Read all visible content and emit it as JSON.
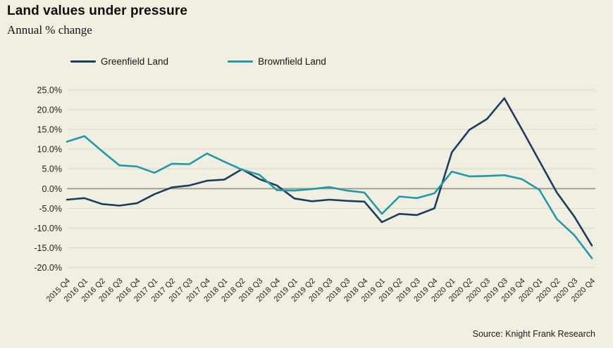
{
  "header": {
    "title": "Land values under pressure",
    "subtitle": "Annual % change"
  },
  "legend": [
    {
      "label": "Greenfield Land",
      "color": "#1c3d5e"
    },
    {
      "label": "Brownfield Land",
      "color": "#2199a8"
    }
  ],
  "source": "Source: Knight Frank Research",
  "colors": {
    "background": "#f1efe2",
    "grid": "#d9d7c6",
    "zero_line": "#a09e8a",
    "axis_text": "#1f1f1f",
    "greenfield": "#1c3d5e",
    "brownfield": "#2199a8"
  },
  "chart_data": {
    "type": "line",
    "title": "Land values under pressure",
    "subtitle": "Annual % change",
    "xlabel": "",
    "ylabel": "Annual % change",
    "ylim": [
      -20,
      25
    ],
    "ytick_step": 5,
    "y_ticks": [
      "25.0%",
      "20.0%",
      "15.0%",
      "10.0%",
      "5.0%",
      "0.0%",
      "-5.0%",
      "-10.0%",
      "-15.0%",
      "-20.0%"
    ],
    "grid": "horizontal",
    "legend_position": "top",
    "categories": [
      "2015 Q4",
      "2016 Q1",
      "2016 Q2",
      "2016 Q3",
      "2016 Q4",
      "2017 Q1",
      "2017 Q2",
      "2017 Q3",
      "2017 Q4",
      "2018 Q1",
      "2018 Q2",
      "2018 Q3",
      "2018 Q4",
      "2019 Q1",
      "2019 Q2",
      "2019 Q3",
      "2018 Q3",
      "2018 Q4",
      "2019 Q1",
      "2019 Q2",
      "2019 Q3",
      "2019 Q4",
      "2020 Q1",
      "2020 Q2",
      "2020 Q3",
      "2019 Q3",
      "2019 Q4",
      "2020 Q1",
      "2020 Q2",
      "2020 Q3",
      "2020 Q4"
    ],
    "series": [
      {
        "name": "Greenfield Land",
        "color": "#1c3d5e",
        "values": [
          -2.8,
          -2.4,
          -3.9,
          -4.3,
          -3.7,
          -1.4,
          0.3,
          0.8,
          2.0,
          2.3,
          4.9,
          2.4,
          0.8,
          -2.5,
          -3.2,
          -2.8,
          -3.1,
          -3.3,
          -8.5,
          -6.4,
          -6.7,
          -5.0,
          9.2,
          14.9,
          17.6,
          22.9,
          15.0,
          7.0,
          -1.0,
          -7.1,
          -14.4
        ]
      },
      {
        "name": "Brownfield Land",
        "color": "#2199a8",
        "values": [
          11.9,
          13.3,
          9.5,
          5.9,
          5.6,
          4.0,
          6.3,
          6.2,
          8.9,
          6.8,
          4.8,
          3.5,
          -0.4,
          -0.5,
          -0.1,
          0.4,
          -0.5,
          -1.0,
          -6.4,
          -2.0,
          -2.4,
          -1.2,
          4.3,
          3.1,
          3.2,
          3.4,
          2.4,
          -0.3,
          -7.7,
          -11.8,
          -17.6
        ]
      }
    ]
  }
}
